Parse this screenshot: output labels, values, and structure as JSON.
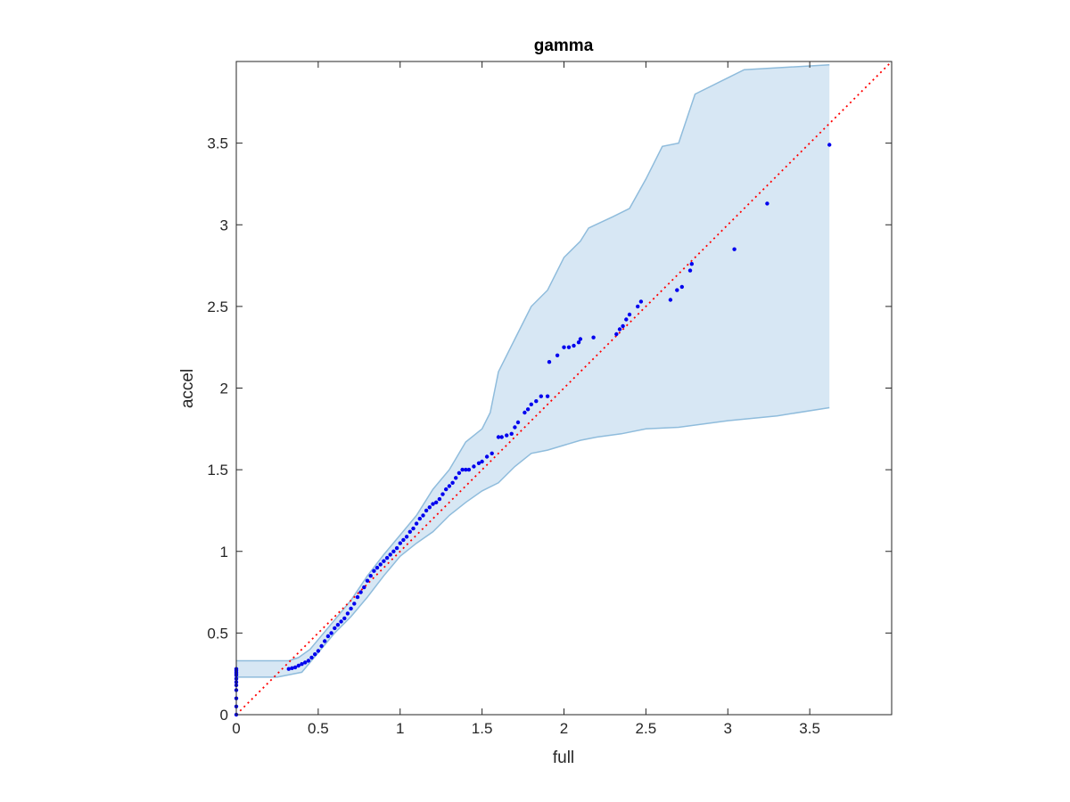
{
  "chart_data": {
    "type": "scatter",
    "title": "gamma",
    "xlabel": "full",
    "ylabel": "accel",
    "xlim": [
      0,
      4
    ],
    "ylim": [
      0,
      4
    ],
    "xticks": [
      0,
      0.5,
      1,
      1.5,
      2,
      2.5,
      3,
      3.5
    ],
    "xtick_labels": [
      "0",
      "0.5",
      "1",
      "1.5",
      "2",
      "2.5",
      "3",
      "3.5"
    ],
    "yticks": [
      0,
      0.5,
      1,
      1.5,
      2,
      2.5,
      3,
      3.5
    ],
    "ytick_labels": [
      "0",
      "0.5",
      "1",
      "1.5",
      "2",
      "2.5",
      "3",
      "3.5"
    ],
    "grid": false,
    "colors": {
      "points": "#0000ee",
      "reference_line": "#ff0000",
      "band_fill": "#d7e7f4",
      "band_edge": "#8fbcdc",
      "axes": "#262626"
    },
    "reference_line": {
      "style": "dotted",
      "points": [
        [
          0,
          0
        ],
        [
          4,
          4
        ]
      ]
    },
    "confidence_band": {
      "upper": [
        [
          0,
          0.33
        ],
        [
          0.32,
          0.33
        ],
        [
          0.38,
          0.35
        ],
        [
          0.45,
          0.4
        ],
        [
          0.55,
          0.52
        ],
        [
          0.6,
          0.58
        ],
        [
          0.7,
          0.7
        ],
        [
          0.8,
          0.85
        ],
        [
          0.9,
          0.98
        ],
        [
          1.0,
          1.1
        ],
        [
          1.1,
          1.22
        ],
        [
          1.2,
          1.38
        ],
        [
          1.3,
          1.5
        ],
        [
          1.4,
          1.67
        ],
        [
          1.5,
          1.75
        ],
        [
          1.55,
          1.85
        ],
        [
          1.6,
          2.1
        ],
        [
          1.7,
          2.3
        ],
        [
          1.8,
          2.5
        ],
        [
          1.9,
          2.6
        ],
        [
          2.0,
          2.8
        ],
        [
          2.1,
          2.9
        ],
        [
          2.15,
          2.98
        ],
        [
          2.3,
          3.05
        ],
        [
          2.4,
          3.1
        ],
        [
          2.5,
          3.28
        ],
        [
          2.6,
          3.48
        ],
        [
          2.7,
          3.5
        ],
        [
          2.8,
          3.8
        ],
        [
          3.0,
          3.9
        ],
        [
          3.1,
          3.95
        ],
        [
          3.62,
          3.98
        ]
      ],
      "lower": [
        [
          0,
          0.23
        ],
        [
          0.25,
          0.23
        ],
        [
          0.4,
          0.26
        ],
        [
          0.5,
          0.38
        ],
        [
          0.6,
          0.5
        ],
        [
          0.7,
          0.6
        ],
        [
          0.8,
          0.72
        ],
        [
          0.9,
          0.85
        ],
        [
          1.0,
          0.97
        ],
        [
          1.1,
          1.05
        ],
        [
          1.2,
          1.12
        ],
        [
          1.3,
          1.22
        ],
        [
          1.4,
          1.3
        ],
        [
          1.5,
          1.37
        ],
        [
          1.6,
          1.42
        ],
        [
          1.7,
          1.52
        ],
        [
          1.8,
          1.6
        ],
        [
          1.9,
          1.62
        ],
        [
          2.0,
          1.65
        ],
        [
          2.1,
          1.68
        ],
        [
          2.2,
          1.7
        ],
        [
          2.35,
          1.72
        ],
        [
          2.5,
          1.75
        ],
        [
          2.7,
          1.76
        ],
        [
          3.0,
          1.8
        ],
        [
          3.3,
          1.83
        ],
        [
          3.62,
          1.88
        ]
      ]
    },
    "series": [
      {
        "x": [
          0,
          0,
          0,
          0,
          0,
          0,
          0,
          0,
          0,
          0,
          0,
          0,
          0.32,
          0.34,
          0.36,
          0.38,
          0.4,
          0.42,
          0.44,
          0.46,
          0.48,
          0.5,
          0.52,
          0.54,
          0.56,
          0.58,
          0.6,
          0.62,
          0.64,
          0.66,
          0.68,
          0.7,
          0.72,
          0.74,
          0.76,
          0.78,
          0.8,
          0.82,
          0.84,
          0.86,
          0.88,
          0.9,
          0.92,
          0.94,
          0.96,
          0.98,
          1.0,
          1.02,
          1.04,
          1.06,
          1.08,
          1.1,
          1.12,
          1.14,
          1.16,
          1.18,
          1.2,
          1.22,
          1.24,
          1.26,
          1.28,
          1.3,
          1.32,
          1.34,
          1.36,
          1.38,
          1.4,
          1.42,
          1.45,
          1.48,
          1.5,
          1.53,
          1.56,
          1.6,
          1.62,
          1.65,
          1.68,
          1.7,
          1.72,
          1.76,
          1.78,
          1.8,
          1.83,
          1.86,
          1.9,
          1.91,
          1.96,
          2.0,
          2.03,
          2.06,
          2.09,
          2.1,
          2.18,
          2.32,
          2.34,
          2.36,
          2.38,
          2.4,
          2.45,
          2.47,
          2.65,
          2.69,
          2.72,
          2.77,
          2.78,
          3.04,
          3.24,
          3.62
        ],
        "y": [
          0,
          0.05,
          0.1,
          0.15,
          0.18,
          0.2,
          0.22,
          0.24,
          0.25,
          0.26,
          0.27,
          0.28,
          0.28,
          0.285,
          0.29,
          0.3,
          0.31,
          0.32,
          0.33,
          0.35,
          0.37,
          0.39,
          0.42,
          0.45,
          0.48,
          0.5,
          0.53,
          0.55,
          0.57,
          0.59,
          0.62,
          0.65,
          0.68,
          0.72,
          0.75,
          0.78,
          0.82,
          0.85,
          0.88,
          0.9,
          0.92,
          0.94,
          0.96,
          0.98,
          1.0,
          1.02,
          1.05,
          1.07,
          1.09,
          1.12,
          1.14,
          1.17,
          1.2,
          1.22,
          1.25,
          1.27,
          1.29,
          1.3,
          1.32,
          1.35,
          1.38,
          1.4,
          1.42,
          1.45,
          1.48,
          1.5,
          1.5,
          1.5,
          1.52,
          1.54,
          1.55,
          1.58,
          1.6,
          1.7,
          1.7,
          1.71,
          1.72,
          1.76,
          1.79,
          1.85,
          1.87,
          1.9,
          1.92,
          1.95,
          1.95,
          2.16,
          2.2,
          2.25,
          2.25,
          2.26,
          2.28,
          2.3,
          2.31,
          2.33,
          2.36,
          2.38,
          2.42,
          2.45,
          2.5,
          2.53,
          2.54,
          2.6,
          2.62,
          2.72,
          2.76,
          2.85,
          3.13,
          3.49
        ]
      }
    ]
  }
}
